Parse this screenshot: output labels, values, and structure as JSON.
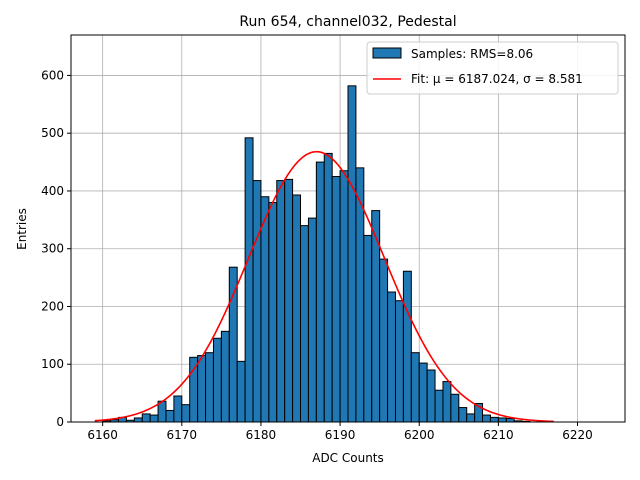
{
  "chart_data": {
    "type": "bar",
    "title": "Run 654, channel032, Pedestal",
    "xlabel": "ADC Counts",
    "ylabel": "Entries",
    "xlim": [
      6156,
      6226
    ],
    "ylim": [
      0,
      670
    ],
    "xticks": [
      6160,
      6170,
      6180,
      6190,
      6200,
      6210,
      6220
    ],
    "yticks": [
      0,
      100,
      200,
      300,
      400,
      500,
      600
    ],
    "grid": true,
    "legend_position": "top-right",
    "colors": {
      "bars": "#1f77b4",
      "bar_edge": "#000000",
      "fit": "#ff0000",
      "grid": "#b0b0b0"
    },
    "legend": [
      {
        "label": "Samples: RMS=8.06",
        "kind": "patch"
      },
      {
        "label": "Fit: μ = 6187.024, σ = 8.581",
        "kind": "line"
      }
    ],
    "histogram": {
      "name": "Samples: RMS=8.06",
      "bin_starts": [
        6160,
        6161,
        6162,
        6163,
        6164,
        6165,
        6166,
        6167,
        6168,
        6169,
        6170,
        6171,
        6172,
        6173,
        6174,
        6175,
        6176,
        6177,
        6178,
        6179,
        6180,
        6181,
        6182,
        6183,
        6184,
        6185,
        6186,
        6187,
        6188,
        6189,
        6190,
        6191,
        6192,
        6193,
        6194,
        6195,
        6196,
        6197,
        6198,
        6199,
        6200,
        6201,
        6202,
        6203,
        6204,
        6205,
        6206,
        6207,
        6208,
        6209,
        6210,
        6211,
        6212,
        6213
      ],
      "bin_width": 1,
      "values": [
        2,
        4,
        8,
        3,
        7,
        14,
        12,
        36,
        20,
        45,
        30,
        112,
        115,
        120,
        145,
        157,
        268,
        105,
        492,
        418,
        390,
        380,
        418,
        420,
        393,
        340,
        353,
        450,
        465,
        425,
        435,
        582,
        440,
        323,
        366,
        282,
        225,
        210,
        261,
        120,
        102,
        90,
        55,
        70,
        48,
        25,
        14,
        32,
        12,
        8,
        7,
        6,
        2,
        1
      ]
    },
    "fit": {
      "name": "Fit: μ = 6187.024, σ = 8.581",
      "mu": 6187.024,
      "sigma": 8.581,
      "amplitude": 468,
      "x_range": [
        6159,
        6217
      ]
    }
  }
}
